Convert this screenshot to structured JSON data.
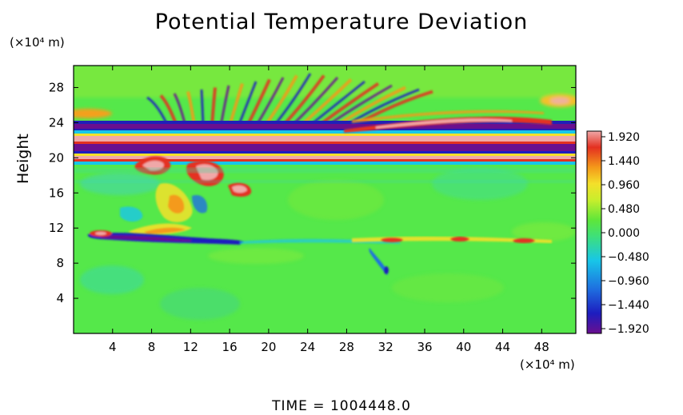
{
  "title": "Potential Temperature Deviation",
  "y_unit": "(×10⁴ m)",
  "x_unit": "(×10⁴ m)",
  "y_label": "Height",
  "time_label": "TIME  =  1004448.0",
  "chart_data": {
    "type": "heatmap",
    "title": "Potential Temperature Deviation",
    "xlabel": "",
    "ylabel": "Height",
    "x_ticks": [
      "4",
      "8",
      "12",
      "16",
      "20",
      "24",
      "28",
      "32",
      "36",
      "40",
      "44",
      "48"
    ],
    "y_ticks": [
      "4",
      "8",
      "12",
      "16",
      "20",
      "24",
      "28"
    ],
    "x_tick_values": [
      4,
      8,
      12,
      16,
      20,
      24,
      28,
      32,
      36,
      40,
      44,
      48
    ],
    "y_tick_values": [
      4,
      8,
      12,
      16,
      20,
      24,
      28
    ],
    "xlim": [
      0,
      51.5
    ],
    "ylim": [
      0,
      30.5
    ],
    "colorbar": {
      "labels": [
        "1.920",
        "1.440",
        "0.960",
        "0.480",
        "0.000",
        "−0.480",
        "−0.960",
        "−1.440",
        "−1.920"
      ],
      "values": [
        1.92,
        1.44,
        0.96,
        0.48,
        0.0,
        -0.48,
        -0.96,
        -1.44,
        -1.92
      ],
      "range": [
        -1.92,
        1.92
      ],
      "colors": [
        "#6a0f8f",
        "#1d1dbf",
        "#1e6fe0",
        "#18c6e8",
        "#3ee07a",
        "#5ee63a",
        "#c8ee2c",
        "#f4e02a",
        "#f49a1a",
        "#e43020",
        "#f0a8a8"
      ]
    },
    "background_level": 0.0,
    "features": [
      {
        "name": "upper alternating bands",
        "y_range": [
          19.8,
          23.6
        ],
        "amplitude": 1.92
      },
      {
        "name": "wave fan",
        "x_range": [
          12,
          34
        ],
        "y_range": [
          23,
          28
        ]
      },
      {
        "name": "turbulent plume",
        "x_range": [
          6,
          22
        ],
        "y_range": [
          10,
          19.5
        ]
      },
      {
        "name": "negative layer",
        "x_range": [
          2,
          19
        ],
        "y_range": [
          9.8,
          10.6
        ],
        "value": -1.6
      },
      {
        "name": "positive layer",
        "x_range": [
          32,
          48
        ],
        "y_range": [
          10,
          11
        ],
        "value": 0.9
      }
    ],
    "time": "1004448.0"
  }
}
